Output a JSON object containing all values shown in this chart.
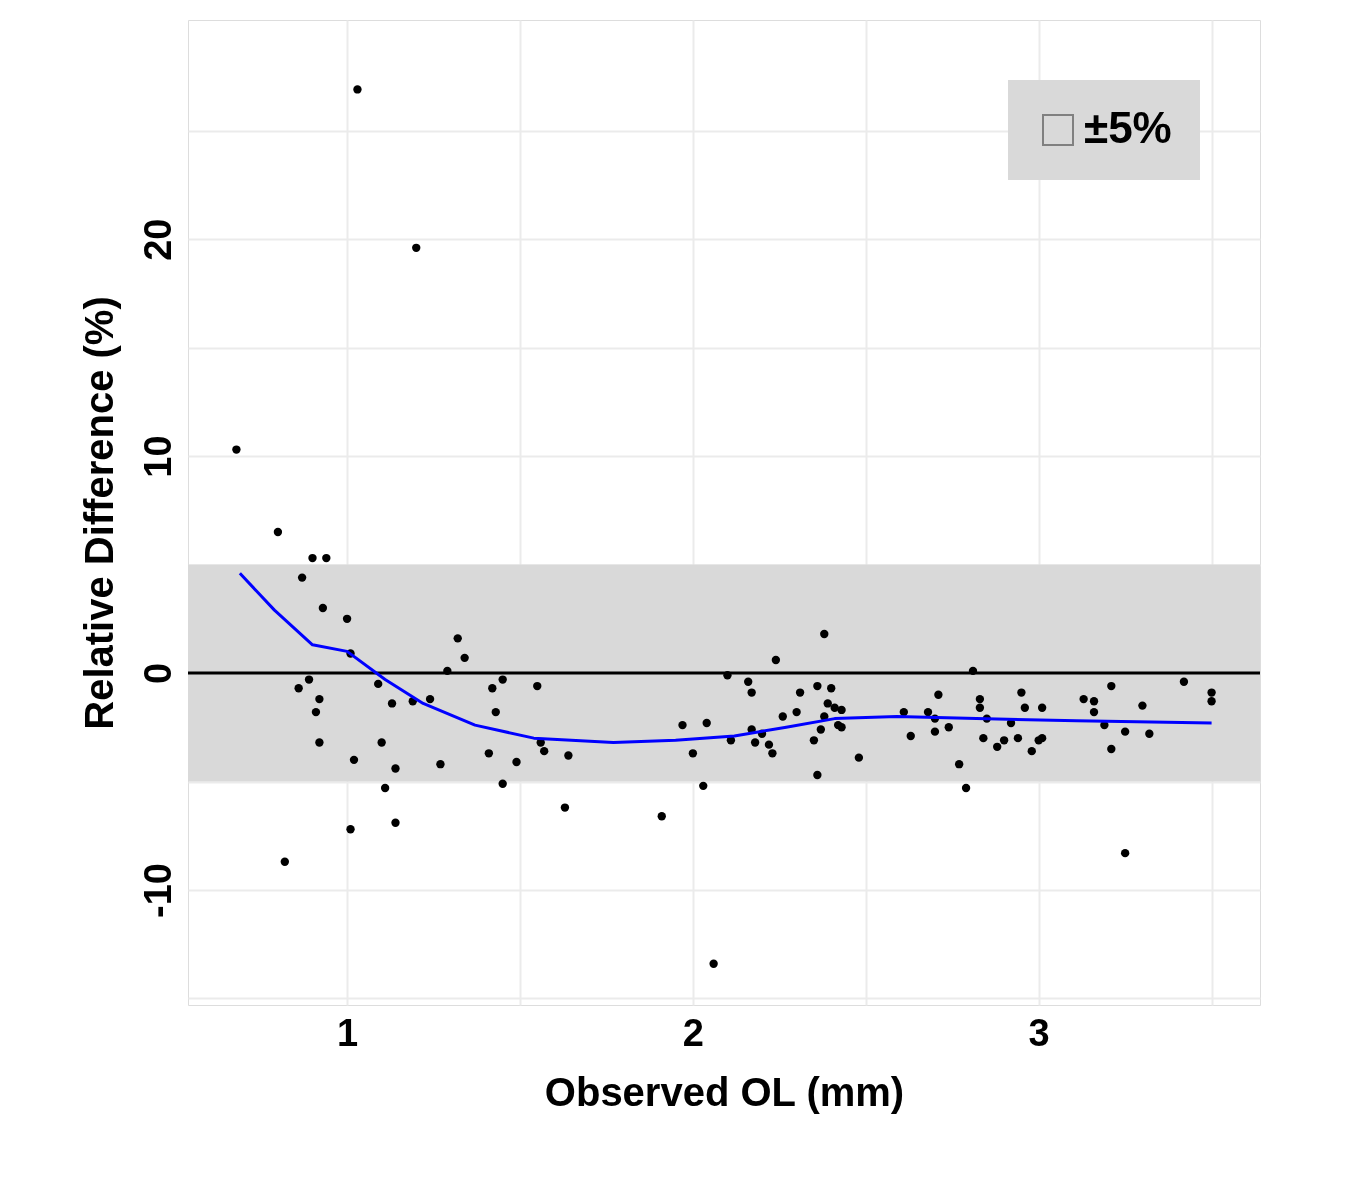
{
  "chart_data": {
    "type": "scatter",
    "xlabel": "Observed OL (mm)",
    "ylabel": "Relative Difference (%)",
    "xlim": [
      0.54,
      3.64
    ],
    "ylim": [
      -15.3,
      30.1
    ],
    "xticks": [
      1,
      {
        "value": 1.5,
        "label": null
      },
      2,
      {
        "value": 2.5,
        "label": null
      },
      3,
      {
        "value": 3.5,
        "label": null
      }
    ],
    "yticks": [
      {
        "value": -15,
        "label": null
      },
      -10,
      {
        "value": -5,
        "label": null
      },
      0,
      {
        "value": 5,
        "label": null
      },
      10,
      {
        "value": 15,
        "label": null
      },
      20,
      {
        "value": 25,
        "label": null
      }
    ],
    "grid": true,
    "legend": "top right",
    "bands": [
      {
        "axis": "y",
        "from": -5,
        "to": 5,
        "label": "±5%",
        "color": "#d9d9d9"
      }
    ],
    "ref_lines": [
      {
        "axis": "y",
        "value": 0,
        "color": "#000000"
      }
    ],
    "series": [
      {
        "type": "scatter",
        "marker": "circle",
        "color": "#000000",
        "x": [
          0.68,
          1.03,
          1.2,
          0.8,
          0.87,
          0.9,
          0.94,
          0.93,
          1.0,
          1.01,
          0.86,
          0.89,
          0.92,
          0.91,
          0.92,
          0.82,
          1.02,
          1.01,
          1.09,
          1.13,
          1.1,
          1.11,
          1.14,
          1.14,
          1.19,
          1.24,
          1.27,
          1.29,
          1.32,
          1.34,
          1.42,
          1.45,
          1.43,
          1.41,
          1.45,
          1.49,
          1.55,
          1.56,
          1.57,
          1.64,
          1.63,
          1.91,
          1.97,
          2.0,
          2.04,
          2.03,
          2.06,
          2.1,
          2.11,
          2.16,
          2.17,
          2.17,
          2.18,
          2.2,
          2.22,
          2.23,
          2.24,
          2.26,
          2.3,
          2.31,
          2.35,
          2.36,
          2.36,
          2.38,
          2.37,
          2.38,
          2.4,
          2.39,
          2.41,
          2.42,
          2.43,
          2.43,
          2.48,
          2.61,
          2.63,
          2.68,
          2.7,
          2.71,
          2.7,
          2.74,
          2.77,
          2.79,
          2.81,
          2.83,
          2.83,
          2.84,
          2.85,
          2.88,
          2.9,
          2.92,
          2.94,
          2.95,
          2.96,
          2.98,
          3.01,
          3.0,
          3.01,
          3.13,
          3.16,
          3.16,
          3.19,
          3.21,
          3.21,
          3.25,
          3.25,
          3.3,
          3.32,
          3.42,
          3.5,
          3.5
        ],
        "values": [
          10.3,
          26.9,
          19.6,
          6.5,
          4.4,
          5.3,
          5.3,
          3.0,
          2.5,
          0.9,
          -0.7,
          -0.3,
          -1.2,
          -1.8,
          -3.2,
          -8.7,
          -4.0,
          -7.2,
          -0.5,
          -1.4,
          -3.2,
          -5.3,
          -4.4,
          -6.9,
          -1.3,
          -1.2,
          -4.2,
          0.1,
          1.6,
          0.7,
          -0.7,
          -0.3,
          -1.8,
          -3.7,
          -5.1,
          -4.1,
          -0.6,
          -3.2,
          -3.6,
          -3.8,
          -6.2,
          -6.6,
          -2.4,
          -3.7,
          -2.3,
          -5.2,
          -13.4,
          -0.1,
          -3.1,
          -0.4,
          -0.9,
          -2.6,
          -3.2,
          -2.8,
          -3.3,
          -3.7,
          0.6,
          -2.0,
          -1.8,
          -0.9,
          -3.1,
          -4.7,
          -0.6,
          1.8,
          -2.6,
          -2.0,
          -0.7,
          -1.4,
          -1.6,
          -2.4,
          -1.7,
          -2.5,
          -3.9,
          -1.8,
          -2.9,
          -1.8,
          -2.1,
          -1.0,
          -2.7,
          -2.5,
          -4.2,
          -5.3,
          0.1,
          -1.6,
          -1.2,
          -3.0,
          -2.1,
          -3.4,
          -3.1,
          -2.3,
          -3.0,
          -0.9,
          -1.6,
          -3.6,
          -1.6,
          -3.1,
          -3.0,
          -1.2,
          -1.3,
          -1.8,
          -2.4,
          -0.6,
          -3.5,
          -2.7,
          -8.3,
          -1.5,
          -2.8,
          -0.4,
          -1.3,
          -0.9
        ]
      },
      {
        "type": "line",
        "marker": "none",
        "color": "#0000ff",
        "x": [
          0.69,
          0.79,
          0.9,
          1.0,
          1.11,
          1.22,
          1.37,
          1.54,
          1.77,
          1.95,
          2.12,
          2.27,
          2.41,
          2.59,
          2.82,
          3.11,
          3.5
        ],
        "values": [
          4.6,
          2.9,
          1.3,
          1.0,
          -0.3,
          -1.4,
          -2.4,
          -3.0,
          -3.2,
          -3.1,
          -2.9,
          -2.5,
          -2.1,
          -2.0,
          -2.1,
          -2.2,
          -2.3
        ]
      }
    ]
  }
}
